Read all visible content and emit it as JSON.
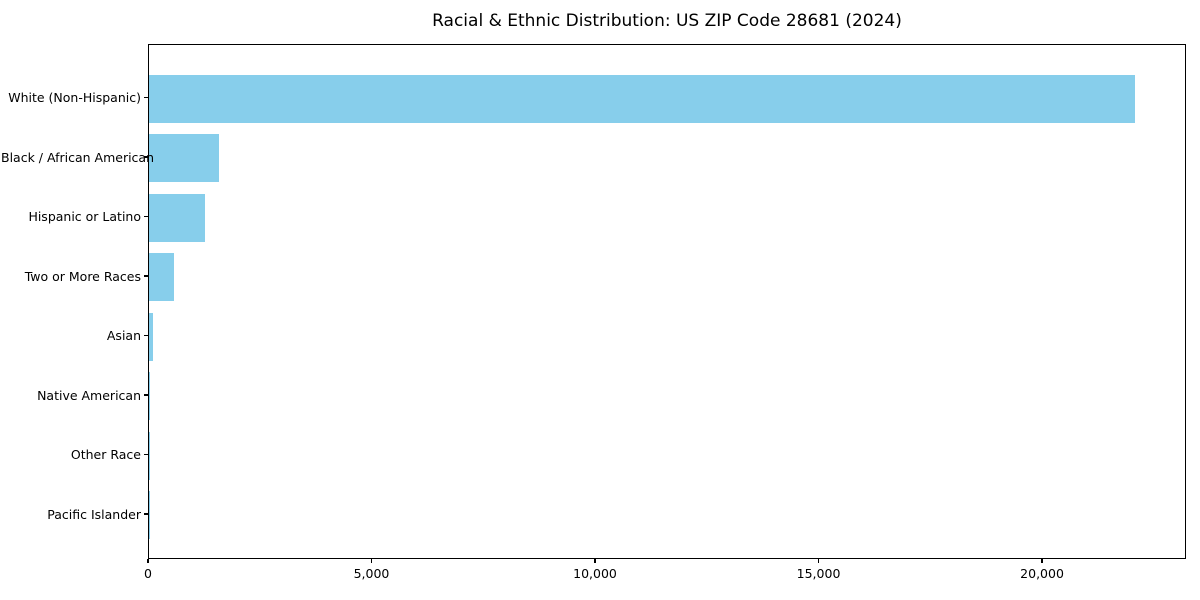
{
  "chart_data": {
    "type": "bar",
    "orientation": "horizontal",
    "title": "Racial & Ethnic Distribution: US ZIP Code 28681 (2024)",
    "categories": [
      "White (Non-Hispanic)",
      "Black / African American",
      "Hispanic or Latino",
      "Two or More Races",
      "Asian",
      "Native American",
      "Other Race",
      "Pacific Islander"
    ],
    "values": [
      22050,
      1570,
      1260,
      560,
      100,
      25,
      20,
      5
    ],
    "xlabel": "",
    "ylabel": "",
    "xlim": [
      0,
      23220
    ],
    "x_ticks": [
      0,
      5000,
      10000,
      15000,
      20000
    ],
    "x_tick_labels": [
      "0",
      "5,000",
      "10,000",
      "15,000",
      "20,000"
    ],
    "bar_color": "#87CEEB",
    "text_color": "#000000",
    "background_color": "#FFFFFF",
    "grid": false,
    "legend": null
  }
}
